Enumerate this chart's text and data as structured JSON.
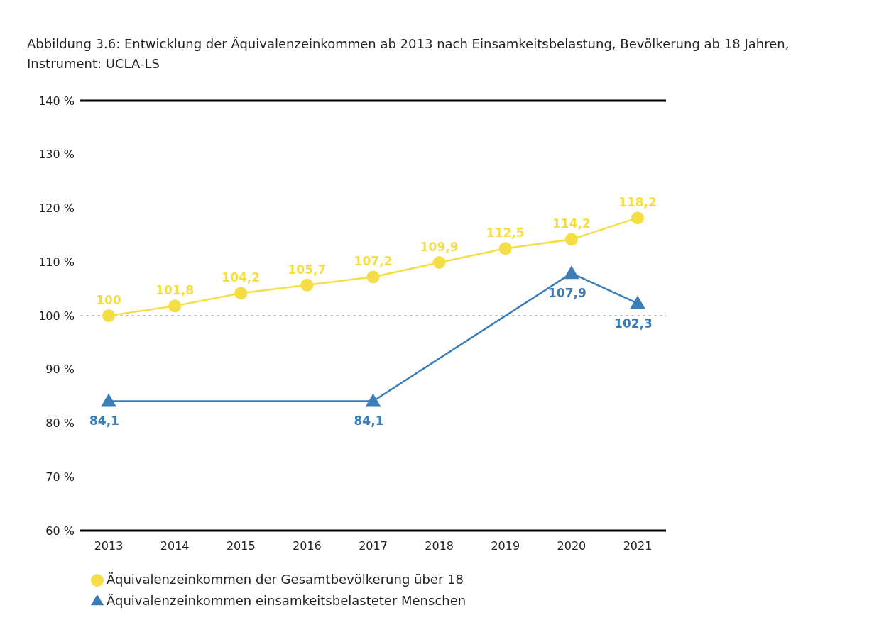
{
  "chart_data": {
    "type": "line",
    "title": "Abbildung 3.6: Entwicklung der Äquivalenzeinkommen ab 2013 nach Einsamkeitsbelastung, Bevölkerung ab 18 Jahren, Instrument: UCLA-LS",
    "categories": [
      "2013",
      "2014",
      "2015",
      "2016",
      "2017",
      "2018",
      "2019",
      "2020",
      "2021"
    ],
    "series": [
      {
        "name": "Äquivalenzeinkommen der Gesamtbevölkerung über 18",
        "color": "#f5de45",
        "marker": "circle",
        "values": [
          100,
          101.8,
          104.2,
          105.7,
          107.2,
          109.9,
          112.5,
          114.2,
          118.2
        ],
        "value_labels": [
          "100",
          "101,8",
          "104,2",
          "105,7",
          "107,2",
          "109,9",
          "112,5",
          "114,2",
          "118,2"
        ]
      },
      {
        "name": "Äquivalenzeinkommen einsamkeitsbelasteter Menschen",
        "color": "#3a7db8",
        "marker": "triangle",
        "values": [
          84.1,
          null,
          null,
          null,
          84.1,
          null,
          null,
          107.9,
          102.3
        ],
        "value_labels": [
          "84,1",
          null,
          null,
          null,
          "84,1",
          null,
          null,
          "107,9",
          "102,3"
        ]
      }
    ],
    "ylim": [
      60,
      140
    ],
    "yticks": [
      {
        "value": 60,
        "label": "60 %"
      },
      {
        "value": 70,
        "label": "70 %"
      },
      {
        "value": 80,
        "label": "80 %"
      },
      {
        "value": 90,
        "label": "90 %"
      },
      {
        "value": 100,
        "label": "100 %"
      },
      {
        "value": 110,
        "label": "110 %"
      },
      {
        "value": 120,
        "label": "120 %"
      },
      {
        "value": 130,
        "label": "130 %"
      },
      {
        "value": 140,
        "label": "140 %"
      }
    ],
    "ref_lines": [
      {
        "axis": "y",
        "value": 100,
        "color": "#888888",
        "line_style": "dashed"
      }
    ],
    "grid": false,
    "legend": "bottom left",
    "line_style": "solid"
  }
}
